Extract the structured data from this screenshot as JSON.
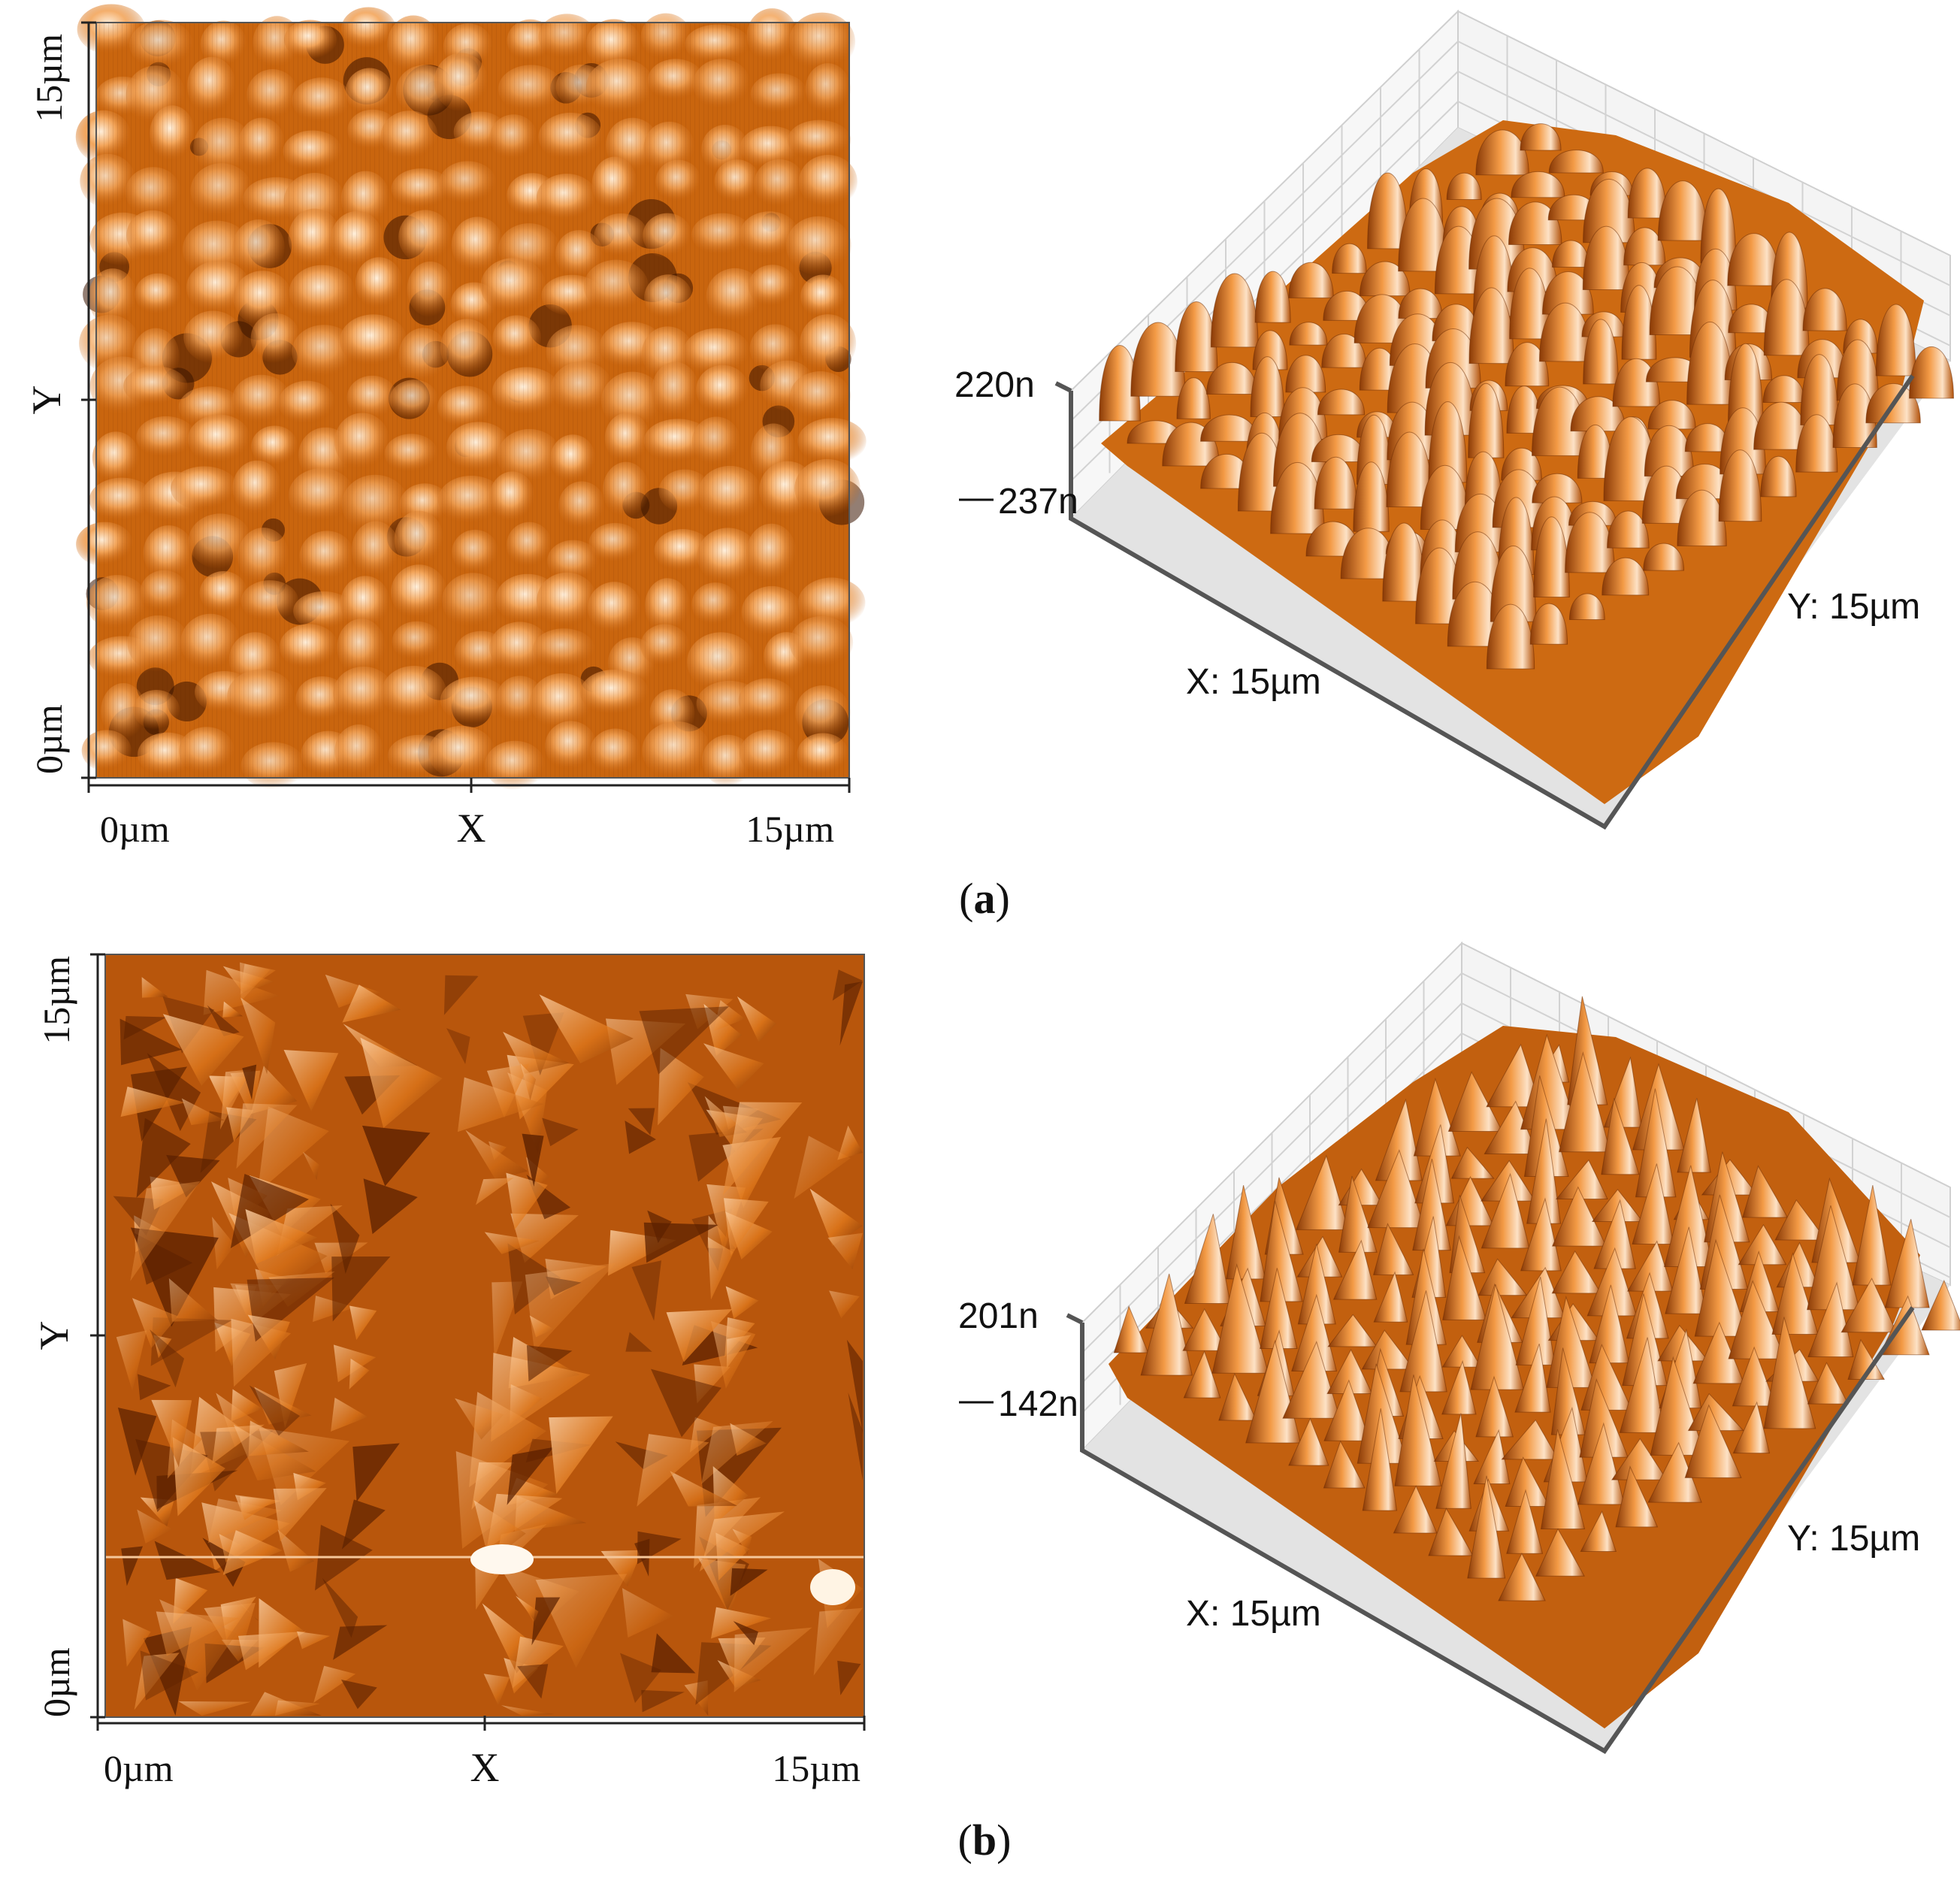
{
  "panels": [
    {
      "id": "a",
      "caption": "a",
      "map_axes": {
        "x_min": "0µm",
        "x_mid": "X",
        "x_max": "15µm",
        "y_min": "0µm",
        "y_mid": "Y",
        "y_max": "15µm"
      },
      "surface_3d": {
        "z_top": "220n",
        "z_bottom": "237n",
        "x_label": "X: 15µm",
        "y_label": "Y: 15µm"
      },
      "texture": "grains"
    },
    {
      "id": "b",
      "caption": "b",
      "map_axes": {
        "x_min": "0µm",
        "x_mid": "X",
        "x_max": "15µm",
        "y_min": "0µm",
        "y_mid": "Y",
        "y_max": "15µm"
      },
      "surface_3d": {
        "z_top": "201n",
        "z_bottom": "142n",
        "x_label": "X: 15µm",
        "y_label": "Y: 15µm"
      },
      "texture": "shards"
    }
  ],
  "colors": {
    "dark": "#3a1400",
    "mid": "#d06a10",
    "light": "#ffe6c8",
    "axis": "#222222",
    "grid": "#c8c8c8",
    "floor": "#d9d9d9"
  }
}
